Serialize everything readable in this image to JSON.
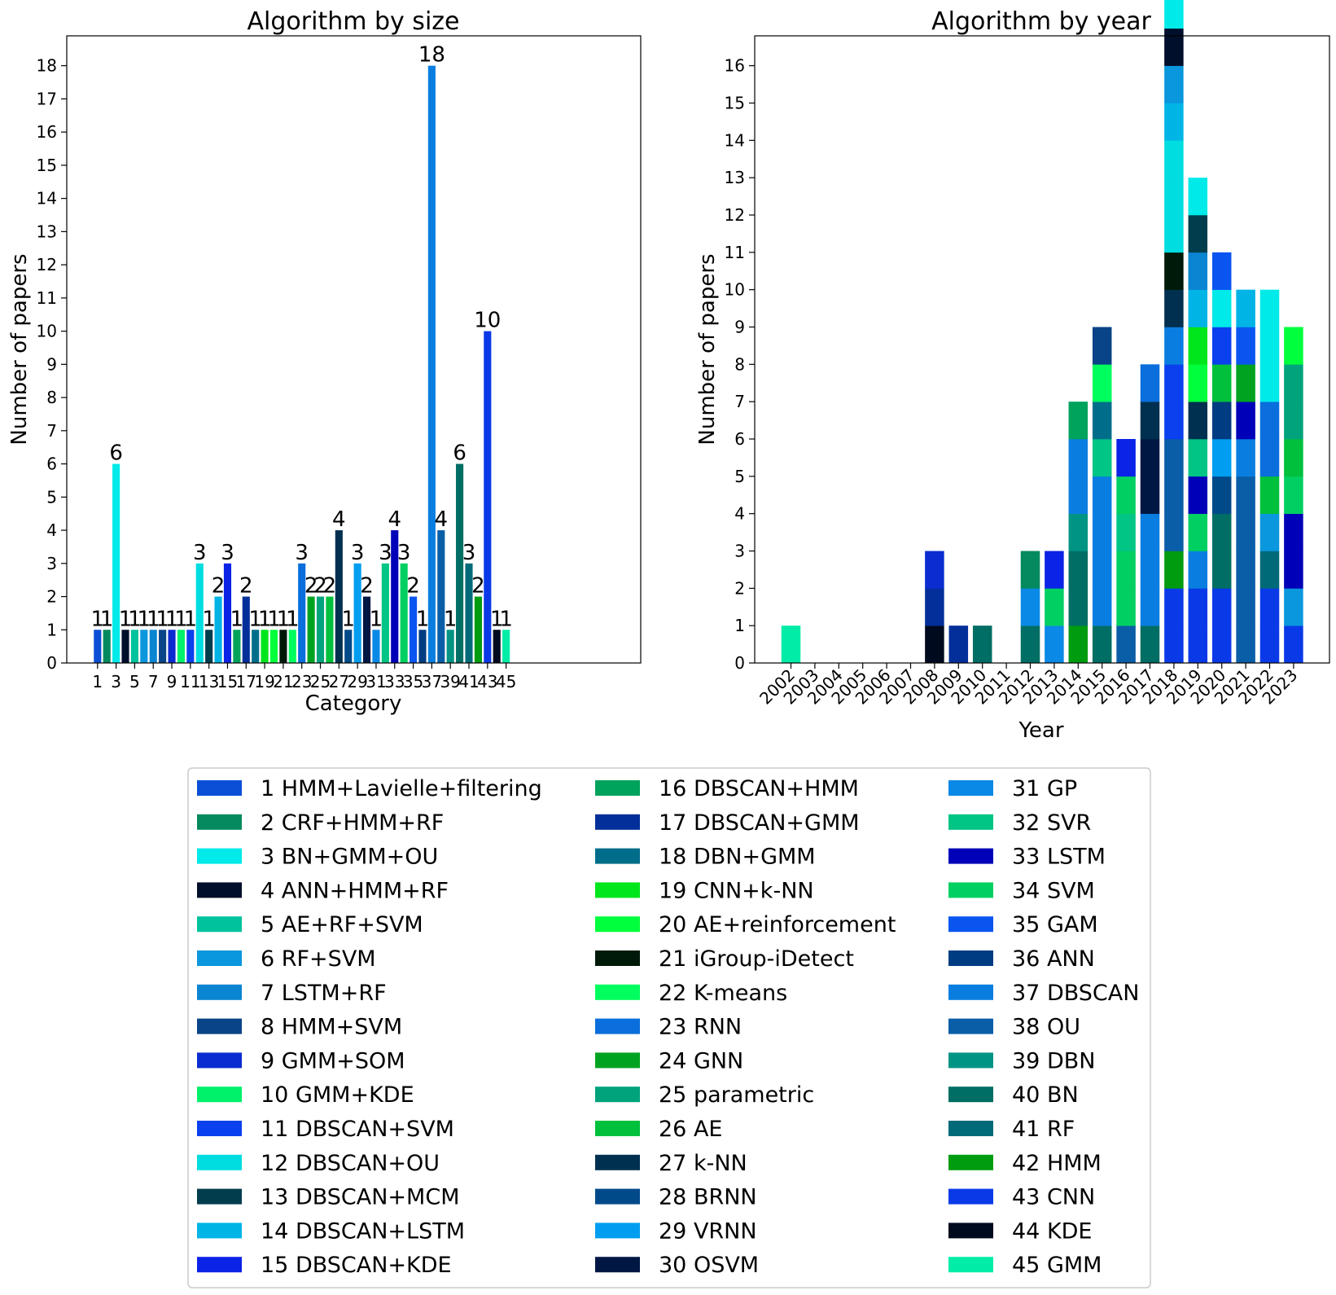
{
  "colors": {
    "categories": [
      "#0a4fd6",
      "#048a5e",
      "#00eaea",
      "#000f2c",
      "#00c29c",
      "#0a97dd",
      "#0a85d2",
      "#084487",
      "#0a2cd0",
      "#00f16a",
      "#0a40ed",
      "#00dde0",
      "#003d4d",
      "#00b4e6",
      "#0a23e6",
      "#00a35c",
      "#022f99",
      "#006e8a",
      "#00e61c",
      "#00ff3c",
      "#001a0a",
      "#00ff5e",
      "#0a6edc",
      "#00a320",
      "#00a37c",
      "#00c03c",
      "#003050",
      "#004a8a",
      "#009ef0",
      "#001744",
      "#0a89e6",
      "#00c585",
      "#0000b8",
      "#00d062",
      "#0a55f0",
      "#003c82",
      "#0a7ee0",
      "#0a5ea8",
      "#009484",
      "#006e64",
      "#006a78",
      "#009c10",
      "#0a3ae8",
      "#000a1e",
      "#00eda8"
    ]
  },
  "legend": {
    "items": [
      "1 HMM+Lavielle+filtering",
      "2 CRF+HMM+RF",
      "3 BN+GMM+OU",
      "4 ANN+HMM+RF",
      "5 AE+RF+SVM",
      "6 RF+SVM",
      "7 LSTM+RF",
      "8 HMM+SVM",
      "9 GMM+SOM",
      "10 GMM+KDE",
      "11 DBSCAN+SVM",
      "12 DBSCAN+OU",
      "13 DBSCAN+MCM",
      "14 DBSCAN+LSTM",
      "15 DBSCAN+KDE",
      "16 DBSCAN+HMM",
      "17 DBSCAN+GMM",
      "18 DBN+GMM",
      "19 CNN+k-NN",
      "20 AE+reinforcement",
      "21 iGroup-iDetect",
      "22 K-means",
      "23 RNN",
      "24 GNN",
      "25 parametric",
      "26 AE",
      "27 k-NN",
      "28 BRNN",
      "29 VRNN",
      "30 OSVM",
      "31 GP",
      "32 SVR",
      "33 LSTM",
      "34 SVM",
      "35 GAM",
      "36 ANN",
      "37 DBSCAN",
      "38 OU",
      "39 DBN",
      "40 BN",
      "41 RF",
      "42 HMM",
      "43 CNN",
      "44 KDE",
      "45 GMM"
    ]
  },
  "chart_data": [
    {
      "type": "bar",
      "title": "Algorithm by size",
      "xlabel": "Category",
      "ylabel": "Number of papers",
      "ylim": [
        0,
        18.9
      ],
      "grid": false,
      "categories": [
        1,
        2,
        3,
        4,
        5,
        6,
        7,
        8,
        9,
        10,
        11,
        12,
        13,
        14,
        15,
        16,
        17,
        18,
        19,
        20,
        21,
        22,
        23,
        24,
        25,
        26,
        27,
        28,
        29,
        30,
        31,
        32,
        33,
        34,
        35,
        36,
        37,
        38,
        39,
        40,
        41,
        42,
        43,
        44,
        45
      ],
      "values": [
        1,
        1,
        6,
        1,
        1,
        1,
        1,
        1,
        1,
        1,
        1,
        3,
        1,
        2,
        3,
        1,
        2,
        1,
        1,
        1,
        1,
        1,
        3,
        2,
        2,
        2,
        4,
        1,
        3,
        2,
        1,
        3,
        4,
        3,
        2,
        1,
        18,
        4,
        1,
        6,
        3,
        2,
        10,
        1,
        1
      ],
      "data_labels": [
        "1",
        "1",
        "6",
        "1",
        "1",
        "1",
        "1",
        "1",
        "1",
        "1",
        "1",
        "3",
        "1",
        "2",
        "3",
        "1",
        "2",
        "1",
        "1",
        "1",
        "1",
        "1",
        "3",
        "2",
        "2",
        "2",
        "4",
        "1",
        "3",
        "2",
        "1",
        "3",
        "4",
        "3",
        "2",
        "1",
        "18",
        "4",
        "1",
        "6",
        "3",
        "2",
        "10",
        "1",
        "1"
      ],
      "xticks": [
        "1",
        "3",
        "5",
        "7",
        "9",
        "11",
        "13",
        "15",
        "17",
        "19",
        "21",
        "23",
        "25",
        "27",
        "29",
        "31",
        "33",
        "35",
        "37",
        "39",
        "41",
        "43",
        "45"
      ],
      "yticks": [
        "0",
        "1",
        "2",
        "3",
        "4",
        "5",
        "6",
        "7",
        "8",
        "9",
        "10",
        "11",
        "12",
        "13",
        "14",
        "15",
        "16",
        "17",
        "18"
      ]
    },
    {
      "type": "bar",
      "stacked": true,
      "title": "Algorithm by year",
      "xlabel": "Year",
      "ylabel": "Number of papers",
      "ylim": [
        0,
        16.8
      ],
      "grid": false,
      "categories": [
        "2002",
        "2003",
        "2004",
        "2005",
        "2006",
        "2007",
        "2008",
        "2009",
        "2010",
        "2011",
        "2012",
        "2013",
        "2014",
        "2015",
        "2016",
        "2017",
        "2018",
        "2019",
        "2020",
        "2021",
        "2022",
        "2023"
      ],
      "yticks": [
        "0",
        "1",
        "2",
        "3",
        "4",
        "5",
        "6",
        "7",
        "8",
        "9",
        "10",
        "11",
        "12",
        "13",
        "14",
        "15",
        "16"
      ],
      "stacks": [
        [
          45
        ],
        [],
        [],
        [],
        [],
        [],
        [
          44,
          17,
          9
        ],
        [
          17
        ],
        [
          40
        ],
        [],
        [
          40,
          31,
          2
        ],
        [
          31,
          34,
          15
        ],
        [
          42,
          40,
          40,
          39,
          37,
          37,
          16
        ],
        [
          40,
          37,
          37,
          37,
          37,
          32,
          18,
          22,
          8
        ],
        [
          38,
          34,
          34,
          32,
          34,
          15
        ],
        [
          40,
          37,
          37,
          37,
          30,
          30,
          27,
          23
        ],
        [
          43,
          43,
          42,
          38,
          38,
          38,
          11,
          11,
          37,
          27,
          21,
          12,
          12,
          12,
          14,
          6,
          4,
          3
        ],
        [
          43,
          43,
          37,
          34,
          33,
          32,
          27,
          20,
          19,
          14,
          7,
          13,
          3
        ],
        [
          43,
          43,
          40,
          40,
          28,
          29,
          36,
          26,
          11,
          3,
          35
        ],
        [
          38,
          38,
          38,
          38,
          38,
          37,
          33,
          24,
          35,
          14
        ],
        [
          43,
          43,
          41,
          6,
          26,
          23,
          23,
          3,
          3,
          3
        ],
        [
          43,
          6,
          33,
          33,
          34,
          26,
          25,
          25,
          20
        ]
      ]
    }
  ]
}
